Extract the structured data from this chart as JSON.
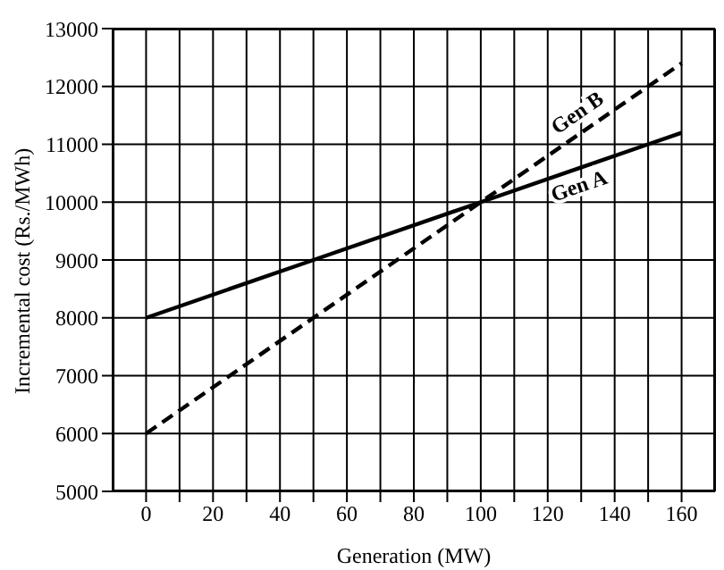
{
  "chart_data": {
    "type": "line",
    "xlabel": "Generation (MW)",
    "ylabel": "Incremental cost (Rs./MWh)",
    "x": [
      0,
      50,
      100,
      130,
      150,
      160
    ],
    "series": [
      {
        "name": "Gen A",
        "color": "#000000",
        "values": [
          8000,
          9000,
          10000,
          10600,
          11000,
          11200
        ],
        "line_style": "solid"
      },
      {
        "name": "Gen B",
        "color": "#000000",
        "values": [
          6000,
          8000,
          10000,
          11200,
          12000,
          12400
        ],
        "line_style": "dashed"
      }
    ],
    "xlim": [
      -10,
      170
    ],
    "xticks": [
      0,
      {
        "value": 10,
        "label": null
      },
      20,
      {
        "value": 30,
        "label": null
      },
      40,
      {
        "value": 50,
        "label": null
      },
      60,
      {
        "value": 70,
        "label": null
      },
      80,
      {
        "value": 90,
        "label": null
      },
      100,
      {
        "value": 110,
        "label": null
      },
      120,
      {
        "value": 130,
        "label": null
      },
      140,
      {
        "value": 150,
        "label": null
      },
      160
    ],
    "ylim": [
      5000,
      13000
    ],
    "yticks": [
      5000,
      6000,
      7000,
      8000,
      9000,
      10000,
      11000,
      12000,
      13000
    ],
    "grid": true,
    "marker": "none",
    "legend": false
  }
}
